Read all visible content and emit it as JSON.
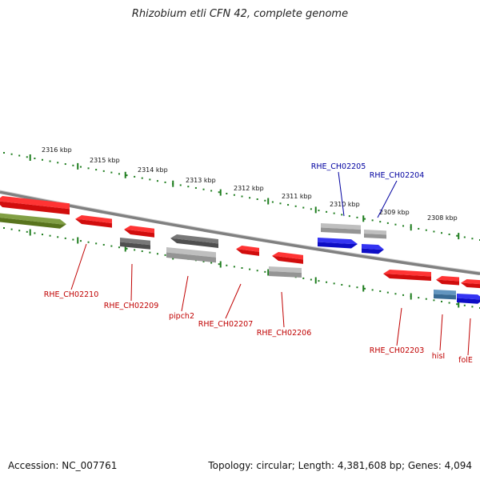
{
  "title": "Rhizobium etli CFN 42, complete genome",
  "footer": {
    "accession": "Accession: NC_007761",
    "topology": "Topology: circular; Length: 4,381,608 bp; Genes: 4,094"
  },
  "colors": {
    "backbone": "#808080",
    "ticks": "#1e7d1e",
    "red": "#ff1010",
    "gray": "#b4b4b4",
    "dark_gray": "#606060",
    "blue": "#1010f0",
    "steel_blue": "#4682b4",
    "olive": "#6b8e23",
    "label_red": "#c00000",
    "label_blue": "#0000a0"
  },
  "scale": {
    "unit": "kbp",
    "labels": [
      "2316 kbp",
      "2315 kbp",
      "2314 kbp",
      "2313 kbp",
      "2312 kbp",
      "2311 kbp",
      "2310 kbp",
      "2309 kbp",
      "2308 kbp"
    ]
  },
  "genes": [
    {
      "label": "",
      "color": "olive",
      "track": "inner"
    },
    {
      "label": "RHE_CH02210",
      "color": "red",
      "track": "outer"
    },
    {
      "label": "RHE_CH02209",
      "color": "red",
      "track": "outer"
    },
    {
      "label": "",
      "color": "dark_gray",
      "track": "inner"
    },
    {
      "label": "pipch2",
      "color": "red",
      "track": "outer"
    },
    {
      "label": "",
      "color": "gray",
      "track": "inner"
    },
    {
      "label": "RHE_CH02207",
      "color": "red",
      "track": "outer"
    },
    {
      "label": "RHE_CH02206",
      "color": "red",
      "track": "outer"
    },
    {
      "label": "",
      "color": "dark_gray",
      "track": "inner"
    },
    {
      "label": "RHE_CH02205",
      "color": "gray",
      "track": "outer"
    },
    {
      "label": "",
      "color": "blue",
      "track": "inner"
    },
    {
      "label": "RHE_CH02204",
      "color": "gray",
      "track": "outer"
    },
    {
      "label": "",
      "color": "blue",
      "track": "inner"
    },
    {
      "label": "RHE_CH02203",
      "color": "red",
      "track": "outer"
    },
    {
      "label": "",
      "color": "gray",
      "track": "inner"
    },
    {
      "label": "hisI",
      "color": "red",
      "track": "outer"
    },
    {
      "label": "",
      "color": "steel_blue",
      "track": "inner"
    },
    {
      "label": "folE",
      "color": "red",
      "track": "outer"
    },
    {
      "label": "",
      "color": "blue",
      "track": "inner"
    }
  ]
}
